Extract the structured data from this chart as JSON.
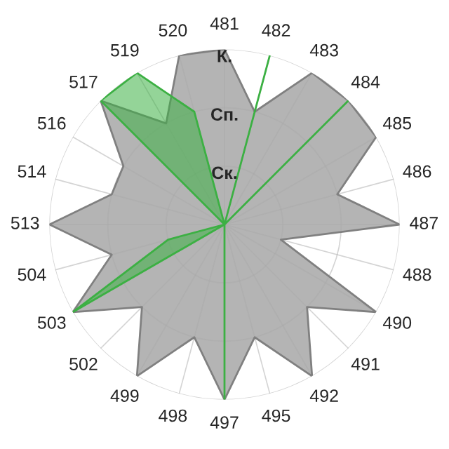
{
  "chart_data": {
    "type": "radar",
    "categories": [
      "481",
      "482",
      "483",
      "484",
      "485",
      "486",
      "487",
      "488",
      "490",
      "491",
      "492",
      "495",
      "497",
      "498",
      "499",
      "502",
      "503",
      "504",
      "513",
      "514",
      "516",
      "517",
      "519",
      "520"
    ],
    "ylim": [
      0,
      3
    ],
    "yticks": [
      {
        "value": 1,
        "label": "Ск."
      },
      {
        "value": 2,
        "label": "Сп."
      },
      {
        "value": 3,
        "label": "К."
      }
    ],
    "grid": true,
    "legend": false,
    "series": [
      {
        "color": "#b4b4b4",
        "values": [
          3,
          2,
          3,
          3,
          3,
          2,
          3,
          1,
          3,
          2,
          3,
          2,
          3,
          2,
          3,
          2,
          3,
          2,
          3,
          2,
          2,
          3,
          2,
          3
        ]
      },
      {
        "color": "#3cb043",
        "values": [
          0,
          3,
          0,
          3,
          0,
          0,
          0,
          0,
          0,
          0,
          0,
          0,
          3,
          0,
          0,
          0,
          3,
          1,
          0,
          0,
          0,
          3,
          3,
          2
        ]
      }
    ]
  }
}
